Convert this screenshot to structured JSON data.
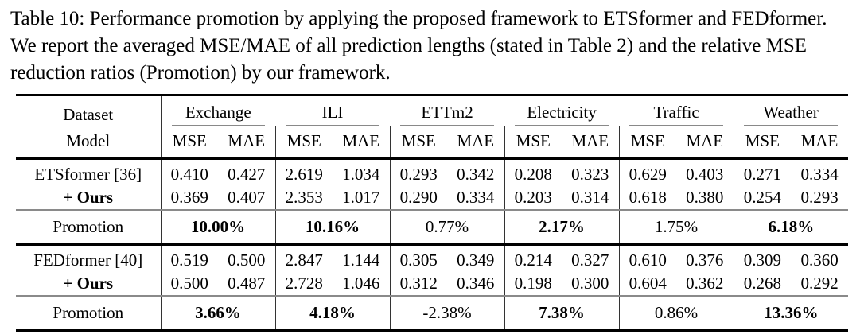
{
  "caption": {
    "lines": [
      "Table 10: Performance promotion by applying the proposed framework to ETSformer and FEDformer.",
      "We report the averaged MSE/MAE of all prediction lengths (stated in Table 2) and the relative MSE",
      "reduction ratios (Promotion) by our framework."
    ]
  },
  "table": {
    "corner_top": "Dataset",
    "corner_bottom": "Model",
    "datasets": [
      "Exchange",
      "ILI",
      "ETTm2",
      "Electricity",
      "Traffic",
      "Weather"
    ],
    "metric_headers": [
      "MSE",
      "MAE"
    ],
    "sections": [
      {
        "rows": [
          {
            "label": "ETSformer [36]",
            "label_bold": false,
            "values": [
              "0.410",
              "0.427",
              "2.619",
              "1.034",
              "0.293",
              "0.342",
              "0.208",
              "0.323",
              "0.629",
              "0.403",
              "0.271",
              "0.334"
            ]
          },
          {
            "label": "+ Ours",
            "label_bold": true,
            "values": [
              "0.369",
              "0.407",
              "2.353",
              "1.017",
              "0.290",
              "0.334",
              "0.203",
              "0.314",
              "0.618",
              "0.380",
              "0.254",
              "0.293"
            ]
          }
        ],
        "promotion_label": "Promotion",
        "promotion": [
          {
            "text": "10.00%",
            "bold": true
          },
          {
            "text": "10.16%",
            "bold": true
          },
          {
            "text": "0.77%",
            "bold": false
          },
          {
            "text": "2.17%",
            "bold": true
          },
          {
            "text": "1.75%",
            "bold": false
          },
          {
            "text": "6.18%",
            "bold": true
          }
        ]
      },
      {
        "rows": [
          {
            "label": "FEDformer [40]",
            "label_bold": false,
            "values": [
              "0.519",
              "0.500",
              "2.847",
              "1.144",
              "0.305",
              "0.349",
              "0.214",
              "0.327",
              "0.610",
              "0.376",
              "0.309",
              "0.360"
            ]
          },
          {
            "label": "+ Ours",
            "label_bold": true,
            "values": [
              "0.500",
              "0.487",
              "2.728",
              "1.046",
              "0.312",
              "0.346",
              "0.198",
              "0.300",
              "0.604",
              "0.362",
              "0.268",
              "0.292"
            ]
          }
        ],
        "promotion_label": "Promotion",
        "promotion": [
          {
            "text": "3.66%",
            "bold": true
          },
          {
            "text": "4.18%",
            "bold": true
          },
          {
            "text": "-2.38%",
            "bold": false
          },
          {
            "text": "7.38%",
            "bold": true
          },
          {
            "text": "0.86%",
            "bold": false
          },
          {
            "text": "13.36%",
            "bold": true
          }
        ]
      }
    ],
    "colors": {
      "text": "#000000",
      "rule_heavy": "#000000",
      "rule_light": "#8a8a8a"
    }
  }
}
